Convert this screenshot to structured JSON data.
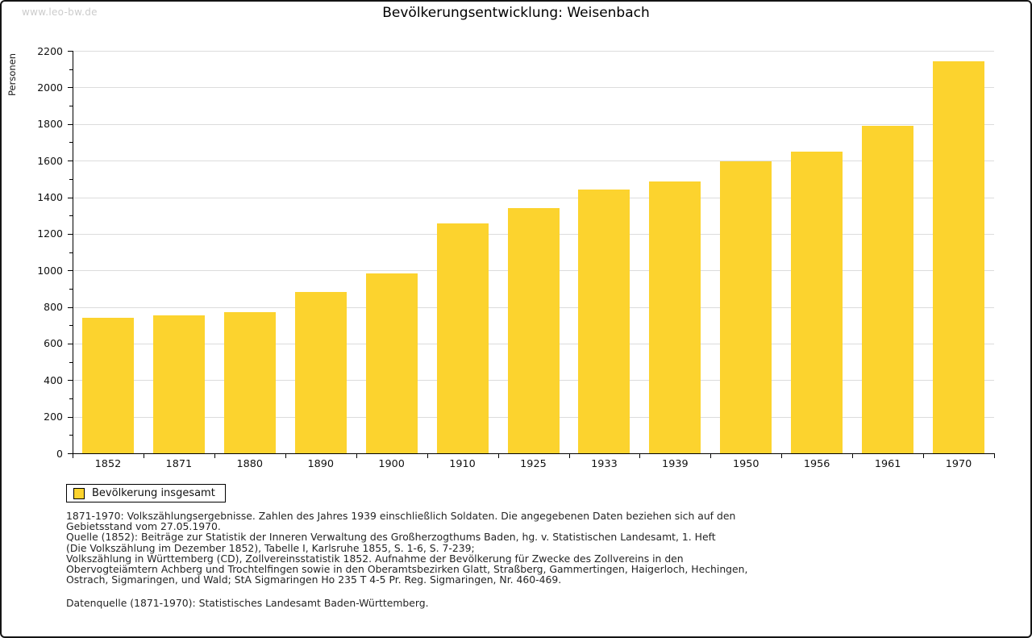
{
  "watermark": "www.leo-bw.de",
  "title": "Bevölkerungsentwicklung: Weisenbach",
  "legend": {
    "label": "Bevölkerung insgesamt",
    "swatch_color": "#FCD32E"
  },
  "chart_data": {
    "type": "bar",
    "title": "Bevölkerungsentwicklung: Weisenbach",
    "xlabel": "",
    "ylabel": "Personen",
    "categories": [
      "1852",
      "1871",
      "1880",
      "1890",
      "1900",
      "1910",
      "1925",
      "1933",
      "1939",
      "1950",
      "1956",
      "1961",
      "1970"
    ],
    "values": [
      740,
      752,
      770,
      880,
      985,
      1258,
      1340,
      1440,
      1488,
      1598,
      1650,
      1790,
      2145
    ],
    "series_name": "Bevölkerung insgesamt",
    "ylim": [
      0,
      2200
    ],
    "ytick_step": 200,
    "yminor_step": 100,
    "grid": true,
    "legend_position": "bottom-left",
    "bar_color": "#FCD32E"
  },
  "colors": {
    "bar": "#FCD32E",
    "grid": "#DCDCDC",
    "axis": "#000000",
    "watermark": "#CCCCCC"
  },
  "footer": {
    "lines": [
      "1871-1970: Volkszählungsergebnisse. Zahlen des Jahres 1939 einschließlich Soldaten. Die angegebenen Daten beziehen sich auf den",
      "Gebietsstand vom 27.05.1970.",
      "Quelle (1852): Beiträge zur Statistik der Inneren Verwaltung des Großherzogthums Baden, hg. v. Statistischen Landesamt, 1. Heft",
      "(Die Volkszählung im Dezember 1852), Tabelle I, Karlsruhe 1855, S. 1-6, S. 7-239;",
      "Volkszählung in Württemberg (CD), Zollvereinsstatistik 1852. Aufnahme der Bevölkerung für Zwecke des Zollvereins in den",
      "Obervogteiämtern Achberg und Trochtelfingen sowie in den Oberamtsbezirken Glatt, Straßberg, Gammertingen, Haigerloch, Hechingen,",
      "Ostrach, Sigmaringen, und Wald; StA Sigmaringen Ho 235 T 4-5 Pr. Reg. Sigmaringen, Nr. 460-469."
    ],
    "datasource": "Datenquelle (1871-1970): Statistisches Landesamt Baden-Württemberg."
  }
}
